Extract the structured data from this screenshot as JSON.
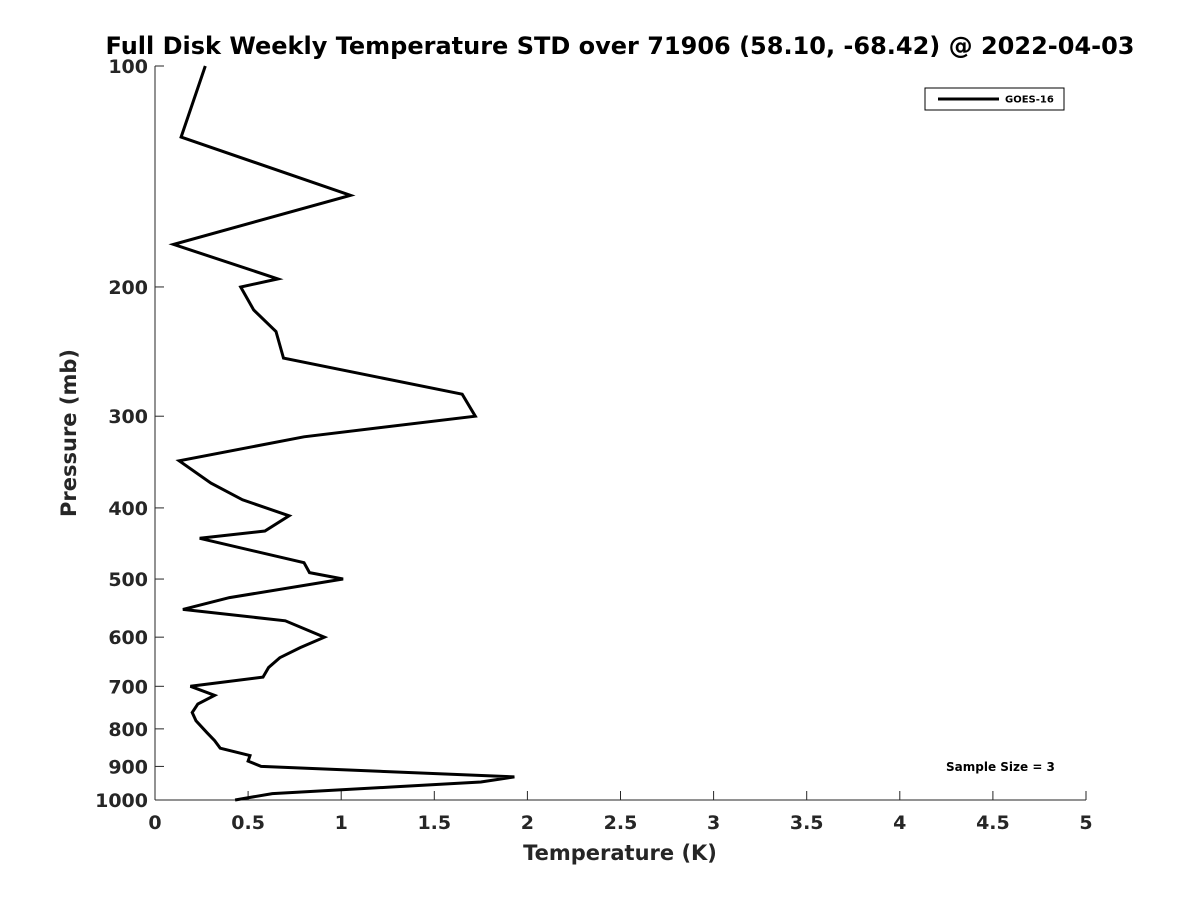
{
  "chart_data": {
    "type": "line",
    "title": "Full Disk Weekly Temperature STD over 71906 (58.10, -68.42) @ 2022-04-03",
    "xlabel": "Temperature (K)",
    "ylabel": "Pressure (mb)",
    "xlim": [
      0,
      5
    ],
    "ylim": [
      1000,
      100
    ],
    "y_scale": "log",
    "x_ticks": [
      0,
      0.5,
      1,
      1.5,
      2,
      2.5,
      3,
      3.5,
      4,
      4.5,
      5
    ],
    "x_tick_labels": [
      "0",
      "0.5",
      "1",
      "1.5",
      "2",
      "2.5",
      "3",
      "3.5",
      "4",
      "4.5",
      "5"
    ],
    "y_ticks": [
      100,
      200,
      300,
      400,
      500,
      600,
      700,
      800,
      900,
      1000
    ],
    "y_tick_labels": [
      "100",
      "200",
      "300",
      "400",
      "500",
      "600",
      "700",
      "800",
      "900",
      "1000"
    ],
    "grid": false,
    "legend_position": "top-right",
    "series": [
      {
        "name": "GOES-16",
        "color": "#000000",
        "points": [
          [
            0.27,
            100
          ],
          [
            0.14,
            125
          ],
          [
            1.05,
            150
          ],
          [
            0.1,
            175
          ],
          [
            0.66,
            195
          ],
          [
            0.46,
            200
          ],
          [
            0.53,
            215
          ],
          [
            0.65,
            230
          ],
          [
            0.69,
            250
          ],
          [
            1.65,
            280
          ],
          [
            1.72,
            300
          ],
          [
            0.8,
            320
          ],
          [
            0.13,
            345
          ],
          [
            0.3,
            370
          ],
          [
            0.47,
            390
          ],
          [
            0.72,
            410
          ],
          [
            0.59,
            430
          ],
          [
            0.24,
            440
          ],
          [
            0.8,
            475
          ],
          [
            0.83,
            490
          ],
          [
            1.01,
            500
          ],
          [
            0.4,
            530
          ],
          [
            0.15,
            550
          ],
          [
            0.7,
            570
          ],
          [
            0.91,
            600
          ],
          [
            0.78,
            620
          ],
          [
            0.67,
            640
          ],
          [
            0.61,
            660
          ],
          [
            0.58,
            680
          ],
          [
            0.19,
            700
          ],
          [
            0.32,
            720
          ],
          [
            0.23,
            740
          ],
          [
            0.2,
            760
          ],
          [
            0.22,
            780
          ],
          [
            0.28,
            810
          ],
          [
            0.32,
            830
          ],
          [
            0.35,
            850
          ],
          [
            0.51,
            870
          ],
          [
            0.5,
            885
          ],
          [
            0.57,
            900
          ],
          [
            1.93,
            930
          ],
          [
            1.75,
            945
          ],
          [
            1.27,
            960
          ],
          [
            0.63,
            980
          ],
          [
            0.43,
            1000
          ]
        ]
      }
    ],
    "annotation": "Sample Size = 3"
  }
}
